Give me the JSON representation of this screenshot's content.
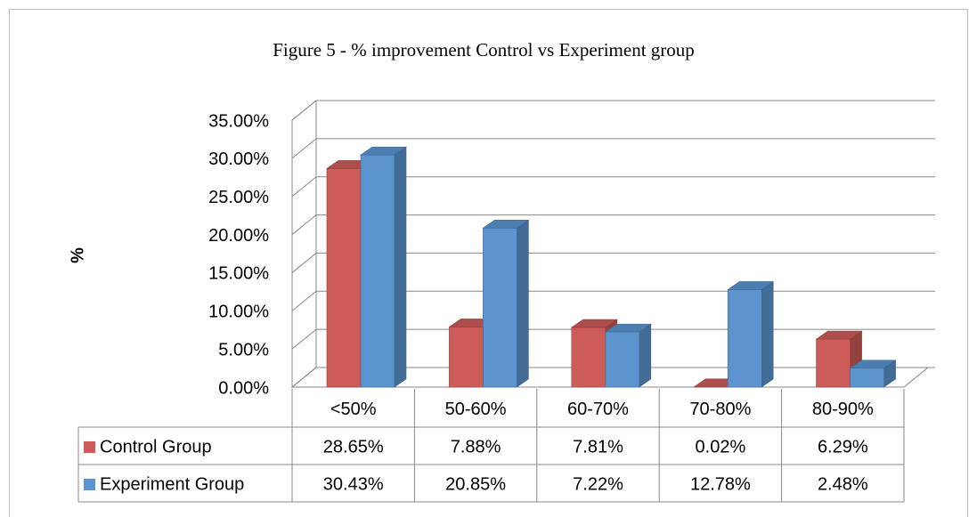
{
  "chart_data": {
    "type": "bar3d",
    "title": "Figure 5 - % improvement Control vs Experiment group",
    "y_label": "%",
    "categories": [
      "<50%",
      "50-60%",
      "60-70%",
      "70-80%",
      "80-90%"
    ],
    "series": [
      {
        "name": "Control Group",
        "color": "#cd5c59",
        "values": [
          28.65,
          7.88,
          7.81,
          0.02,
          6.29
        ],
        "value_labels": [
          "28.65%",
          "7.88%",
          "7.81%",
          "0.02%",
          "6.29%"
        ]
      },
      {
        "name": "Experiment Group",
        "color": "#5b94cf",
        "values": [
          30.43,
          20.85,
          7.22,
          12.78,
          2.48
        ],
        "value_labels": [
          "30.43%",
          "20.85%",
          "7.22%",
          "12.78%",
          "2.48%"
        ]
      }
    ],
    "ylim": [
      0,
      35
    ],
    "yticks": [
      {
        "value": 0,
        "label": "0.00%"
      },
      {
        "value": 5,
        "label": "5.00%"
      },
      {
        "value": 10,
        "label": "10.00%"
      },
      {
        "value": 15,
        "label": "15.00%"
      },
      {
        "value": 20,
        "label": "20.00%"
      },
      {
        "value": 25,
        "label": "25.00%"
      },
      {
        "value": 30,
        "label": "30.00%"
      },
      {
        "value": 35,
        "label": "35.00%"
      }
    ],
    "grid": true
  }
}
